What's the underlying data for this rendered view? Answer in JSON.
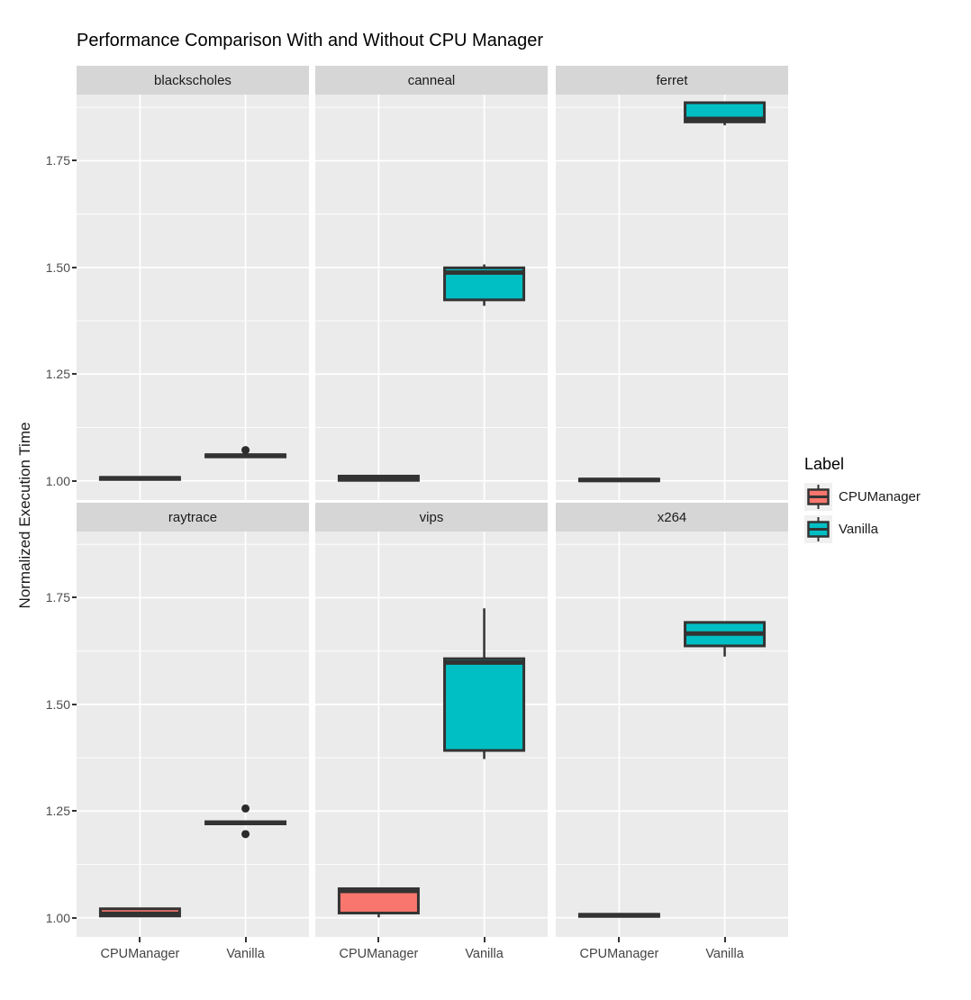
{
  "title": "Performance Comparison With and Without CPU Manager",
  "y_axis": {
    "title": "Normalized Execution Time",
    "tick_labels": [
      "1.00",
      "1.25",
      "1.50",
      "1.75"
    ],
    "tick_values": [
      1.0,
      1.25,
      1.5,
      1.75
    ],
    "minor_tick_values": [
      1.125,
      1.375,
      1.625,
      1.875
    ],
    "range": [
      0.955,
      1.905
    ]
  },
  "x_axis": {
    "categories": [
      "CPUManager",
      "Vanilla"
    ]
  },
  "legend": {
    "title": "Label",
    "items": [
      {
        "label": "CPUManager",
        "color": "#F8766D"
      },
      {
        "label": "Vanilla",
        "color": "#00BFC4"
      }
    ]
  },
  "colors": {
    "panel_bg": "#EBEBEB",
    "strip_bg": "#D6D6D6",
    "grid": "#FFFFFF",
    "box_stroke": "#333333",
    "axis_text": "#4D4D4D",
    "legend_key_bg": "#F0F0F0",
    "cpumanager": "#F8766D",
    "vanilla": "#00BFC4"
  },
  "chart_data": {
    "type": "boxplot",
    "facet_layout": {
      "rows": 2,
      "cols": 3
    },
    "title": "Performance Comparison With and Without CPU Manager",
    "ylabel": "Normalized Execution Time",
    "xlabel": "",
    "ylim": [
      0.955,
      1.905
    ],
    "grid": true,
    "legend_position": "right",
    "facets": [
      {
        "name": "blackscholes",
        "boxes": [
          {
            "group": "CPUManager",
            "low": 1.001,
            "q1": 1.003,
            "median": 1.006,
            "q3": 1.008,
            "high": 1.01,
            "outliers": []
          },
          {
            "group": "Vanilla",
            "low": 1.053,
            "q1": 1.056,
            "median": 1.059,
            "q3": 1.061,
            "high": 1.064,
            "outliers": [
              1.072
            ]
          }
        ]
      },
      {
        "name": "canneal",
        "boxes": [
          {
            "group": "CPUManager",
            "low": 0.999,
            "q1": 1.001,
            "median": 1.005,
            "q3": 1.011,
            "high": 1.013,
            "outliers": []
          },
          {
            "group": "Vanilla",
            "low": 1.41,
            "q1": 1.424,
            "median": 1.488,
            "q3": 1.499,
            "high": 1.507,
            "outliers": []
          }
        ]
      },
      {
        "name": "ferret",
        "boxes": [
          {
            "group": "CPUManager",
            "low": 0.998,
            "q1": 1.0,
            "median": 1.002,
            "q3": 1.004,
            "high": 1.006,
            "outliers": []
          },
          {
            "group": "Vanilla",
            "low": 1.833,
            "q1": 1.841,
            "median": 1.848,
            "q3": 1.886,
            "high": 1.888,
            "outliers": []
          }
        ]
      },
      {
        "name": "raytrace",
        "boxes": [
          {
            "group": "CPUManager",
            "low": 1.002,
            "q1": 1.004,
            "median": 1.009,
            "q3": 1.021,
            "high": 1.023,
            "outliers": []
          },
          {
            "group": "Vanilla",
            "low": 1.218,
            "q1": 1.22,
            "median": 1.222,
            "q3": 1.225,
            "high": 1.227,
            "outliers": [
              1.256,
              1.196
            ]
          }
        ]
      },
      {
        "name": "vips",
        "boxes": [
          {
            "group": "CPUManager",
            "low": 1.001,
            "q1": 1.011,
            "median": 1.063,
            "q3": 1.068,
            "high": 1.071,
            "outliers": []
          },
          {
            "group": "Vanilla",
            "low": 1.372,
            "q1": 1.392,
            "median": 1.598,
            "q3": 1.607,
            "high": 1.725,
            "outliers": []
          }
        ]
      },
      {
        "name": "x264",
        "boxes": [
          {
            "group": "CPUManager",
            "low": 1.001,
            "q1": 1.003,
            "median": 1.006,
            "q3": 1.008,
            "high": 1.01,
            "outliers": []
          },
          {
            "group": "Vanilla",
            "low": 1.612,
            "q1": 1.637,
            "median": 1.666,
            "q3": 1.692,
            "high": 1.695,
            "outliers": []
          }
        ]
      }
    ]
  }
}
